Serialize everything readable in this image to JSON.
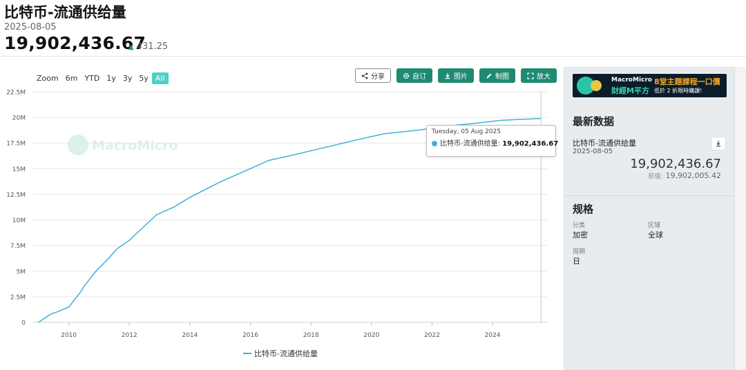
{
  "header": {
    "title": "比特币-流通供给量",
    "date": "2025-08-05",
    "value": "19,902,436.67",
    "change": "431.25"
  },
  "toolbar": {
    "ranges": [
      "Zoom",
      "6m",
      "YTD",
      "1y",
      "3y",
      "5y",
      "All"
    ],
    "active_range": "All",
    "share_label": "分享",
    "subscribe_label": "自订",
    "image_label": "图片",
    "draw_label": "制图",
    "fullscreen_label": "放大"
  },
  "watermark": "MacroMicro",
  "tooltip": {
    "date": "Tuesday, 05 Aug 2025",
    "series": "比特币-流通供给量:",
    "value": "19,902,436.67"
  },
  "legend": {
    "label": "比特币-流通供给量"
  },
  "sidebar": {
    "banner": {
      "brand": "MacroMicro",
      "brand_cn": "財經M平方",
      "promo": "8堂主題課程一口價",
      "promo_sub": "低於 2 折限時購課!"
    },
    "latest_title": "最新数据",
    "series_name": "比特币-流通供给量",
    "series_date": "2025-08-05",
    "latest_value": "19,902,436.67",
    "prev_label": "前值:",
    "prev_value": "19,902,005.42",
    "spec_title": "规格",
    "spec": {
      "category_label": "分类",
      "category_value": "加密",
      "region_label": "区域",
      "region_value": "全球",
      "period_label": "周期",
      "period_value": "日"
    }
  },
  "colors": {
    "series": "#3fb0d7",
    "accent": "#1f8a72",
    "active_range": "#4cd1c4"
  },
  "chart_data": {
    "type": "line",
    "title": "比特币-流通供给量",
    "xlabel": "",
    "ylabel": "",
    "ylim": [
      0,
      22500000
    ],
    "xlim": [
      2008.8,
      2025.8
    ],
    "yticks": [
      0,
      2500000,
      5000000,
      7500000,
      10000000,
      12500000,
      15000000,
      17500000,
      20000000,
      22500000
    ],
    "ytick_labels": [
      "0",
      "2.5M",
      "5M",
      "7.5M",
      "10M",
      "12.5M",
      "15M",
      "17.5M",
      "20M",
      "22.5M"
    ],
    "xticks": [
      2010,
      2012,
      2014,
      2016,
      2018,
      2020,
      2022,
      2024
    ],
    "xtick_labels": [
      "2010",
      "2012",
      "2014",
      "2016",
      "2018",
      "2020",
      "2022",
      "2024"
    ],
    "grid": true,
    "legend": "bottom-center",
    "series": [
      {
        "name": "比特币-流通供给量",
        "x": [
          2009.0,
          2009.4,
          2009.6,
          2010.0,
          2010.4,
          2010.5,
          2010.9,
          2011.3,
          2011.6,
          2012.0,
          2012.5,
          2012.9,
          2013.5,
          2014.0,
          2015.0,
          2016.0,
          2016.6,
          2017.5,
          2018.5,
          2019.5,
          2020.4,
          2021.5,
          2022.5,
          2023.5,
          2024.3,
          2025.0,
          2025.6
        ],
        "y": [
          0,
          800000,
          1000000,
          1500000,
          3000000,
          3500000,
          5000000,
          6200000,
          7200000,
          8000000,
          9400000,
          10500000,
          11300000,
          12200000,
          13700000,
          15000000,
          15800000,
          16400000,
          17100000,
          17800000,
          18400000,
          18750000,
          19150000,
          19450000,
          19720000,
          19820000,
          19902436.67
        ]
      }
    ],
    "highlight": {
      "x": "2025-08-05",
      "y": 19902436.67
    }
  }
}
